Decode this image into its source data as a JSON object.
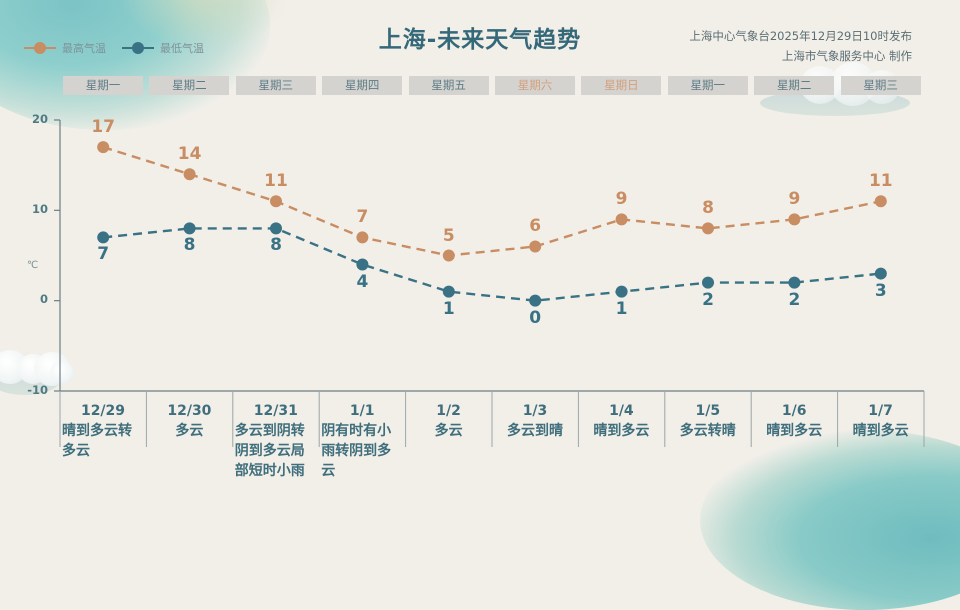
{
  "header": {
    "title": "上海-未来天气趋势",
    "publisher_line1": "上海中心气象台2025年12月29日10时发布",
    "publisher_line2": "上海市气象服务中心  制作"
  },
  "legend": {
    "high_label": "最高气温",
    "low_label": "最低气温"
  },
  "colors": {
    "high": "#c98d63",
    "low": "#3a7285",
    "weekday_text": "#5d7c86",
    "weekend_text": "#d2a07e",
    "axis": "#6b7e82"
  },
  "weekdays": [
    {
      "label": "星期一",
      "weekend": false
    },
    {
      "label": "星期二",
      "weekend": false
    },
    {
      "label": "星期三",
      "weekend": false
    },
    {
      "label": "星期四",
      "weekend": false
    },
    {
      "label": "星期五",
      "weekend": false
    },
    {
      "label": "星期六",
      "weekend": true
    },
    {
      "label": "星期日",
      "weekend": true
    },
    {
      "label": "星期一",
      "weekend": false
    },
    {
      "label": "星期二",
      "weekend": false
    },
    {
      "label": "星期三",
      "weekend": false
    }
  ],
  "axis": {
    "unit": "℃",
    "ticks": [
      "20",
      "10",
      "0",
      "-10"
    ]
  },
  "days": [
    {
      "date": "12/29",
      "weather": "晴到多云转多云"
    },
    {
      "date": "12/30",
      "weather": "多云"
    },
    {
      "date": "12/31",
      "weather": "多云到阴转阴到多云局部短时小雨"
    },
    {
      "date": "1/1",
      "weather": "阴有时有小雨转阴到多云"
    },
    {
      "date": "1/2",
      "weather": "多云"
    },
    {
      "date": "1/3",
      "weather": "多云到晴"
    },
    {
      "date": "1/4",
      "weather": "晴到多云"
    },
    {
      "date": "1/5",
      "weather": "多云转晴"
    },
    {
      "date": "1/6",
      "weather": "晴到多云"
    },
    {
      "date": "1/7",
      "weather": "晴到多云"
    }
  ],
  "chart_data": {
    "type": "line",
    "title": "上海-未来天气趋势",
    "xlabel": "",
    "ylabel": "℃",
    "ylim": [
      -10,
      20
    ],
    "yticks": [
      20,
      10,
      0,
      -10
    ],
    "grid": false,
    "legend_position": "top-left",
    "categories": [
      "12/29",
      "12/30",
      "12/31",
      "1/1",
      "1/2",
      "1/3",
      "1/4",
      "1/5",
      "1/6",
      "1/7"
    ],
    "weekdays": [
      "星期一",
      "星期二",
      "星期三",
      "星期四",
      "星期五",
      "星期六",
      "星期日",
      "星期一",
      "星期二",
      "星期三"
    ],
    "series": [
      {
        "name": "最高气温",
        "color": "#c98d63",
        "style": "dashed",
        "values": [
          17,
          14,
          11,
          7,
          5,
          6,
          9,
          8,
          9,
          11
        ]
      },
      {
        "name": "最低气温",
        "color": "#3a7285",
        "style": "dashed",
        "values": [
          7,
          8,
          8,
          4,
          1,
          0,
          1,
          2,
          2,
          3
        ]
      }
    ],
    "weather": [
      "晴到多云转多云",
      "多云",
      "多云到阴转阴到多云局部短时小雨",
      "阴有时有小雨转阴到多云",
      "多云",
      "多云到晴",
      "晴到多云",
      "多云转晴",
      "晴到多云",
      "晴到多云"
    ]
  }
}
